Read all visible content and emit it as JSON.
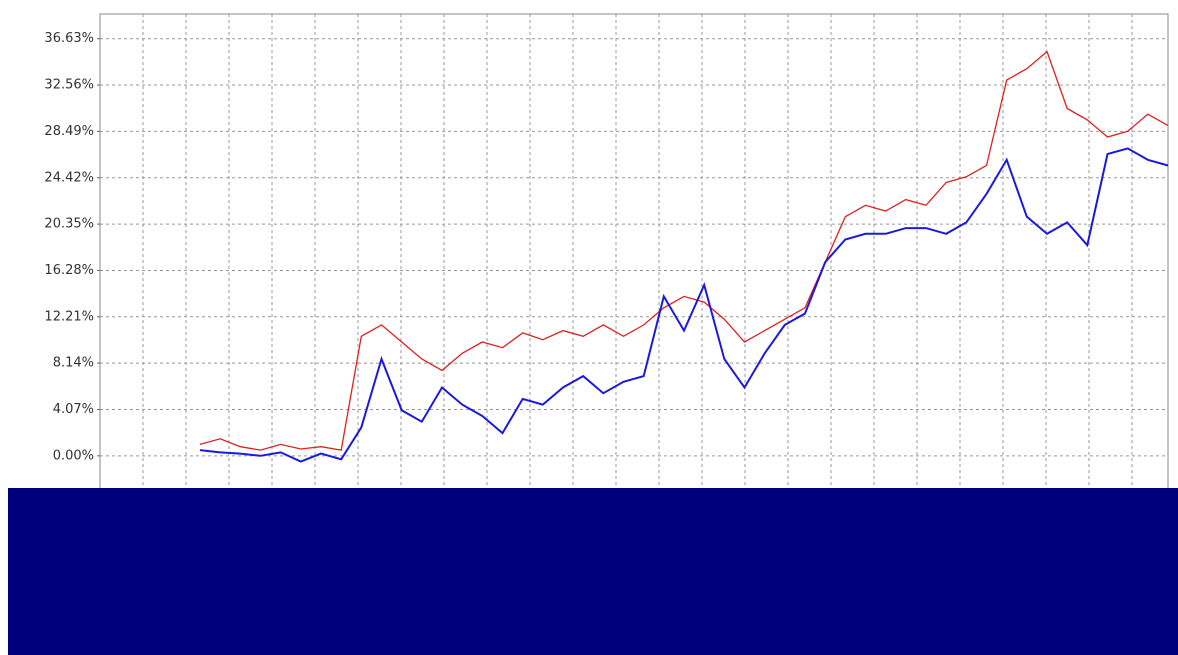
{
  "chart_data": {
    "type": "line",
    "ylim": [
      -3.0,
      38.8
    ],
    "yticks": [
      {
        "value": 0,
        "label": "0.00%"
      },
      {
        "value": 4.07,
        "label": "4.07%"
      },
      {
        "value": 8.14,
        "label": "8.14%"
      },
      {
        "value": 12.21,
        "label": "12.21%"
      },
      {
        "value": 16.28,
        "label": "16.28%"
      },
      {
        "value": 20.35,
        "label": "20.35%"
      },
      {
        "value": 24.42,
        "label": "24.42%"
      },
      {
        "value": 28.49,
        "label": "28.49%"
      },
      {
        "value": 32.56,
        "label": "32.56%"
      },
      {
        "value": 36.63,
        "label": "36.63%"
      }
    ],
    "grid": true,
    "series": [
      {
        "color": "#e02020",
        "values": [
          1.0,
          1.5,
          0.8,
          0.5,
          1.0,
          0.6,
          0.8,
          0.5,
          10.5,
          11.5,
          10.0,
          8.5,
          7.5,
          9.0,
          10.0,
          9.5,
          10.8,
          10.2,
          11.0,
          10.5,
          11.5,
          10.5,
          11.5,
          13.0,
          14.0,
          13.5,
          12.0,
          10.0,
          11.0,
          12.0,
          13.0,
          17.0,
          21.0,
          22.0,
          21.5,
          22.5,
          22.0,
          24.0,
          24.5,
          25.5,
          33.0,
          34.0,
          35.5,
          30.5,
          29.5,
          28.0,
          28.5,
          30.0,
          29.0
        ]
      },
      {
        "color": "#1a1adc",
        "values": [
          0.5,
          0.3,
          0.2,
          0.0,
          0.3,
          -0.5,
          0.2,
          -0.3,
          2.5,
          8.5,
          4.0,
          3.0,
          6.0,
          4.5,
          3.5,
          2.0,
          5.0,
          4.5,
          6.0,
          7.0,
          5.5,
          6.5,
          7.0,
          14.0,
          11.0,
          15.0,
          8.5,
          6.0,
          9.0,
          11.5,
          12.5,
          17.0,
          19.0,
          19.5,
          19.5,
          20.0,
          20.0,
          19.5,
          20.5,
          23.0,
          26.0,
          21.0,
          19.5,
          20.5,
          18.5,
          26.5,
          27.0,
          26.0,
          25.5
        ]
      }
    ]
  }
}
